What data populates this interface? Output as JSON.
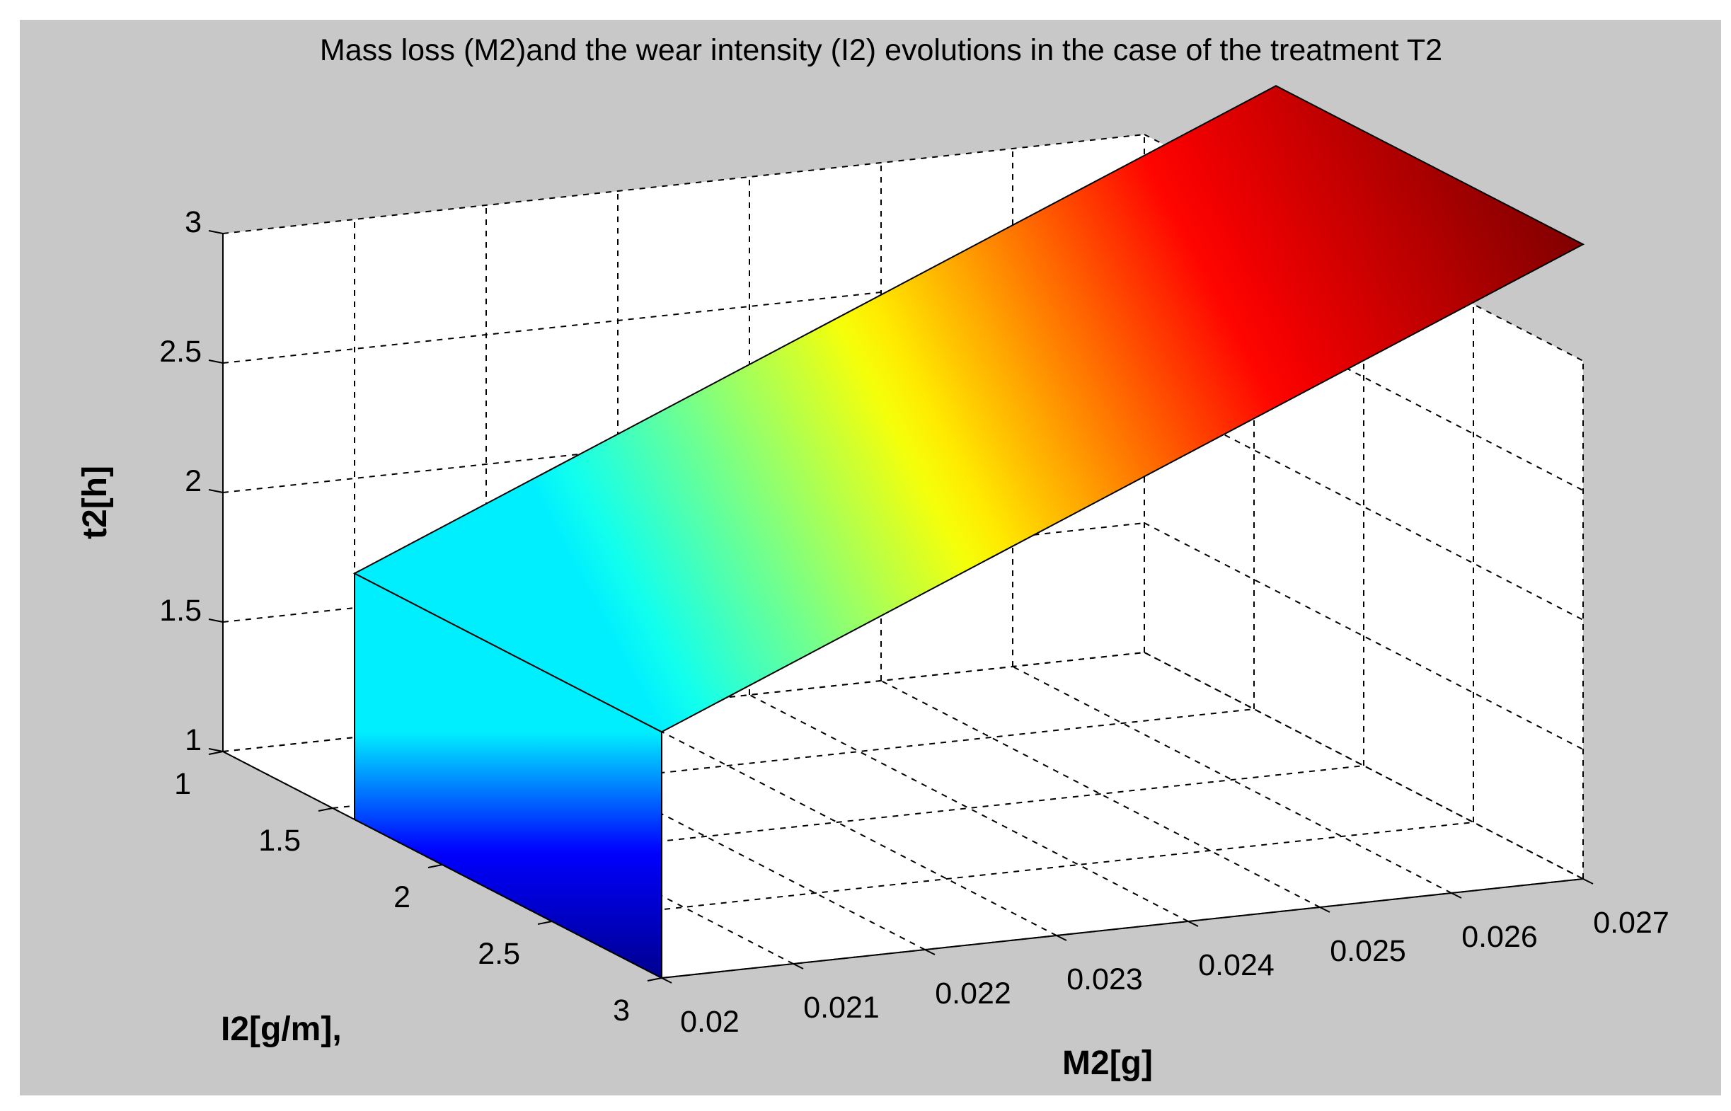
{
  "chart_data": {
    "type": "surface",
    "title": "Mass loss (M2)and the wear intensity (I2) evolutions in the case of the treatment T2",
    "xlabel": "M2[g]",
    "ylabel": "I2[g/m],",
    "zlabel": "t2[h]",
    "xlim": [
      0.02,
      0.027
    ],
    "ylim": [
      1,
      3
    ],
    "zlim": [
      1,
      3
    ],
    "x_ticks": [
      "0.02",
      "0.021",
      "0.022",
      "0.023",
      "0.024",
      "0.025",
      "0.026",
      "0.027"
    ],
    "y_ticks": [
      "1",
      "1.5",
      "2",
      "2.5",
      "3"
    ],
    "z_ticks": [
      "1",
      "1.5",
      "2",
      "2.5",
      "3"
    ],
    "grid": true,
    "colormap": "jet",
    "colormap_colors": [
      "#00008f",
      "#0000ff",
      "#00ffff",
      "#ffff00",
      "#ff0000",
      "#800000"
    ],
    "surface": {
      "top_face": {
        "M2": [
          0.02,
          0.027
        ],
        "I2": [
          1.6,
          3
        ],
        "t2_at_M2_min": 1.95,
        "t2_at_M2_max": 3.45
      },
      "front_face": {
        "M2": 0.02,
        "I2": [
          1.6,
          3
        ],
        "t2": [
          1,
          1.95
        ]
      }
    }
  }
}
